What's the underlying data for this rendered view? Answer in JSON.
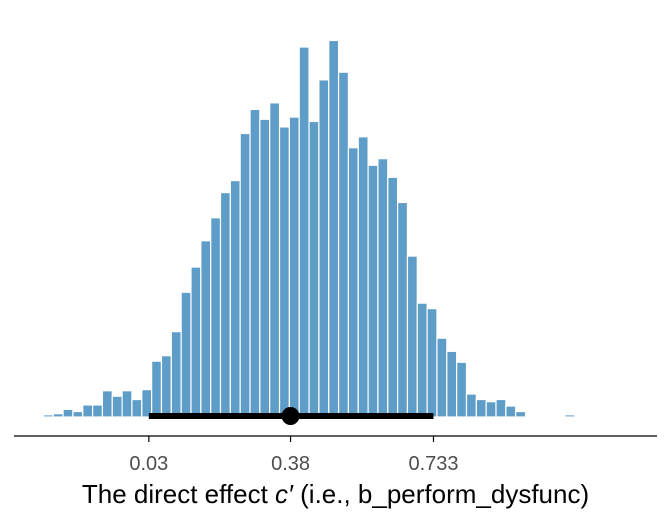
{
  "chart_data": {
    "type": "bar",
    "xlabel": {
      "before": "The direct effect ",
      "symbol": "c′",
      "after": " (i.e., b_perform_dysfunc)"
    },
    "ticks": [
      {
        "value": 0.03,
        "label": "0.03"
      },
      {
        "value": 0.38,
        "label": "0.38"
      },
      {
        "value": 0.733,
        "label": "0.733"
      }
    ],
    "xlim": [
      -0.303,
      1.285
    ],
    "bin_width": 0.0243,
    "bin_start": -0.279,
    "counts": [
      1,
      1,
      2,
      3,
      7,
      5,
      11,
      11,
      24,
      19,
      24,
      16,
      25,
      51,
      56,
      78,
      114,
      137,
      161,
      182,
      205,
      216,
      259,
      281,
      272,
      287,
      265,
      274,
      338,
      270,
      308,
      344,
      315,
      246,
      256,
      230,
      236,
      219,
      196,
      147,
      104,
      99,
      72,
      60,
      50,
      21,
      16,
      14,
      16,
      10,
      5,
      1,
      1,
      1,
      1,
      2,
      0,
      1,
      1,
      0,
      1
    ],
    "ylim": [
      0,
      370
    ],
    "interval": {
      "point": 0.38,
      "lower": 0.03,
      "upper": 0.733
    },
    "grid": false,
    "legend": "none",
    "colors": {
      "bar_fill": "#5f9dc9",
      "bar_outline": "#ffffff",
      "interval": "#000000",
      "axis": "#000000"
    }
  }
}
